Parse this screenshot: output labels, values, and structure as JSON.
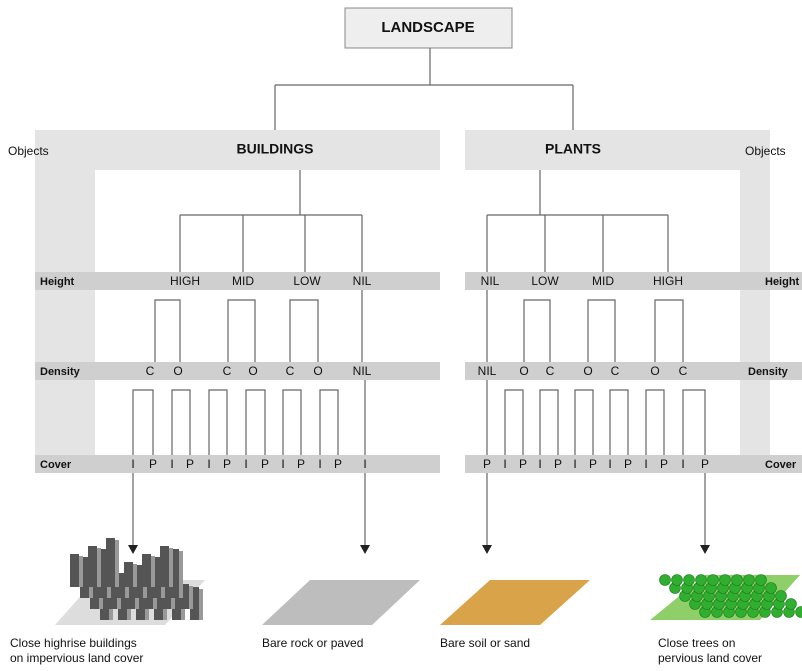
{
  "title": "LANDSCAPE",
  "left": {
    "objects_label": "Objects",
    "header": "BUILDINGS"
  },
  "right": {
    "objects_label": "Objects",
    "header": "PLANTS"
  },
  "height": {
    "label_left": "Height",
    "label_right": "Height",
    "left": [
      "HIGH",
      "MID",
      "LOW",
      "NIL"
    ],
    "right": [
      "NIL",
      "LOW",
      "MID",
      "HIGH"
    ]
  },
  "density": {
    "label_left": "Density",
    "label_right": "Density",
    "left": [
      "C",
      "O",
      "C",
      "O",
      "C",
      "O",
      "NIL"
    ],
    "right": [
      "NIL",
      "O",
      "C",
      "O",
      "C",
      "O",
      "C"
    ]
  },
  "cover": {
    "label_left": "Cover",
    "label_right": "Cover",
    "left": [
      "I",
      "P",
      "I",
      "P",
      "I",
      "P",
      "I",
      "P",
      "I",
      "P",
      "I",
      "P",
      "I"
    ],
    "right": [
      "P",
      "I",
      "P",
      "I",
      "P",
      "I",
      "P",
      "I",
      "P",
      "I",
      "P",
      "I",
      "P"
    ]
  },
  "examples": [
    {
      "lines": [
        "Close highrise buildings",
        "on impervious land cover"
      ]
    },
    {
      "lines": [
        "Bare rock or paved"
      ]
    },
    {
      "lines": [
        "Bare soil or sand"
      ]
    },
    {
      "lines": [
        "Close trees on",
        "pervious land cover"
      ]
    }
  ]
}
